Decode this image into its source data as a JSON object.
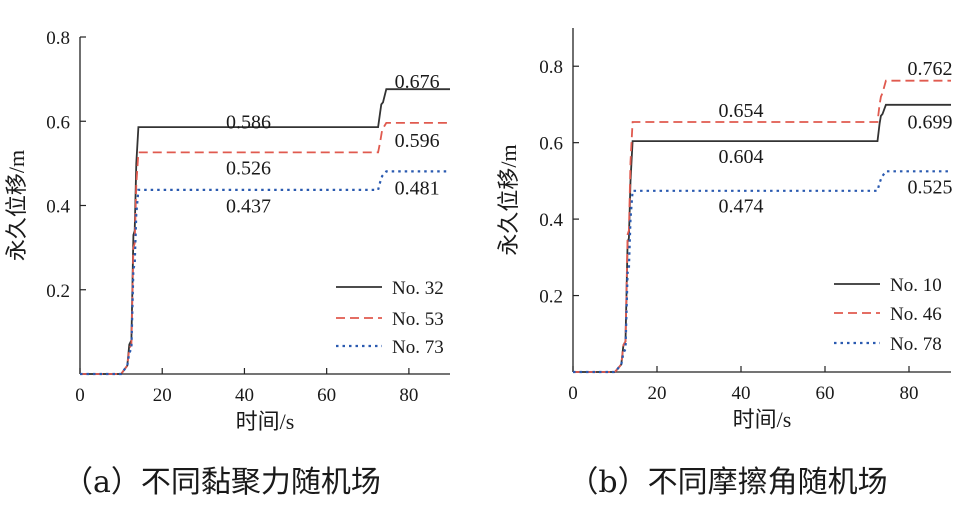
{
  "chart_data": [
    {
      "type": "line",
      "caption": "（a）不同黏聚力随机场",
      "xlabel": "时间/s",
      "ylabel": "永久位移/m",
      "xlim": [
        0,
        90
      ],
      "ylim": [
        0,
        0.8
      ],
      "xticks": [
        0,
        20,
        40,
        60,
        80
      ],
      "yticks": [
        0.2,
        0.4,
        0.6,
        0.8
      ],
      "tick_labels_x": [
        "0",
        "20",
        "40",
        "60",
        "80"
      ],
      "tick_labels_y": [
        "0.2",
        "0.4",
        "0.6",
        "0.8"
      ],
      "legend": "bottom-right",
      "series": [
        {
          "name": "No. 32",
          "color": "#333333",
          "style": "solid",
          "x": [
            0,
            10,
            11.5,
            12,
            12.5,
            13,
            13.3,
            13.7,
            14.2,
            72.5,
            73,
            73.3,
            73.7,
            74.5,
            90
          ],
          "y": [
            0,
            0,
            0.02,
            0.07,
            0.08,
            0.33,
            0.34,
            0.5,
            0.586,
            0.586,
            0.62,
            0.64,
            0.645,
            0.676,
            0.676
          ]
        },
        {
          "name": "No. 53",
          "color": "#e05a4f",
          "style": "dashed",
          "x": [
            0,
            10,
            11.5,
            12,
            12.5,
            13,
            13.3,
            13.7,
            14.2,
            72.5,
            73,
            73.5,
            74.5,
            90
          ],
          "y": [
            0,
            0,
            0.02,
            0.06,
            0.07,
            0.3,
            0.31,
            0.45,
            0.526,
            0.526,
            0.55,
            0.58,
            0.596,
            0.596
          ]
        },
        {
          "name": "No. 73",
          "color": "#2a5ab0",
          "style": "dotted",
          "x": [
            0,
            10,
            11.5,
            12,
            12.5,
            13,
            13.3,
            13.7,
            14.2,
            72.5,
            73,
            73.5,
            74.5,
            90
          ],
          "y": [
            0,
            0,
            0.02,
            0.05,
            0.06,
            0.25,
            0.26,
            0.38,
            0.437,
            0.437,
            0.455,
            0.47,
            0.481,
            0.481
          ]
        }
      ],
      "annotations": [
        {
          "text": "0.586",
          "x": 41,
          "y": 0.6
        },
        {
          "text": "0.526",
          "x": 41,
          "y": 0.49
        },
        {
          "text": "0.437",
          "x": 41,
          "y": 0.4
        },
        {
          "text": "0.676",
          "x": 82,
          "y": 0.695
        },
        {
          "text": "0.596",
          "x": 82,
          "y": 0.555
        },
        {
          "text": "0.481",
          "x": 82,
          "y": 0.443
        }
      ]
    },
    {
      "type": "line",
      "caption": "（b）不同摩擦角随机场",
      "xlabel": "时间/s",
      "ylabel": "永久位移/m",
      "xlim": [
        0,
        90
      ],
      "ylim": [
        0,
        0.9
      ],
      "xticks": [
        0,
        20,
        40,
        60,
        80
      ],
      "yticks": [
        0.2,
        0.4,
        0.6,
        0.8
      ],
      "tick_labels_x": [
        "0",
        "20",
        "40",
        "60",
        "80"
      ],
      "tick_labels_y": [
        "0.2",
        "0.4",
        "0.6",
        "0.8"
      ],
      "legend": "bottom-right",
      "series": [
        {
          "name": "No. 10",
          "color": "#333333",
          "style": "solid",
          "x": [
            0,
            10,
            11.5,
            12,
            12.5,
            13,
            13.3,
            13.7,
            14.2,
            72.5,
            73,
            73.3,
            73.7,
            74.5,
            90
          ],
          "y": [
            0,
            0,
            0.02,
            0.07,
            0.08,
            0.34,
            0.35,
            0.5,
            0.604,
            0.604,
            0.65,
            0.67,
            0.675,
            0.699,
            0.699
          ]
        },
        {
          "name": "No. 46",
          "color": "#e05a4f",
          "style": "dashed",
          "x": [
            0,
            10,
            11.5,
            12,
            12.5,
            13,
            13.3,
            13.7,
            14.2,
            72.5,
            73,
            73.3,
            73.7,
            74.5,
            90
          ],
          "y": [
            0,
            0,
            0.02,
            0.07,
            0.08,
            0.36,
            0.37,
            0.55,
            0.654,
            0.654,
            0.7,
            0.72,
            0.73,
            0.762,
            0.762
          ]
        },
        {
          "name": "No. 78",
          "color": "#2a5ab0",
          "style": "dotted",
          "x": [
            0,
            10,
            11.5,
            12,
            12.5,
            13,
            13.3,
            13.7,
            14.2,
            72.5,
            73,
            73.5,
            74.5,
            90
          ],
          "y": [
            0,
            0,
            0.02,
            0.05,
            0.06,
            0.26,
            0.27,
            0.4,
            0.474,
            0.474,
            0.495,
            0.51,
            0.525,
            0.525
          ]
        }
      ],
      "annotations": [
        {
          "text": "0.654",
          "x": 40,
          "y": 0.685
        },
        {
          "text": "0.604",
          "x": 40,
          "y": 0.565
        },
        {
          "text": "0.474",
          "x": 40,
          "y": 0.435
        },
        {
          "text": "0.762",
          "x": 85,
          "y": 0.795
        },
        {
          "text": "0.699",
          "x": 85,
          "y": 0.655
        },
        {
          "text": "0.525",
          "x": 85,
          "y": 0.485
        }
      ]
    }
  ]
}
